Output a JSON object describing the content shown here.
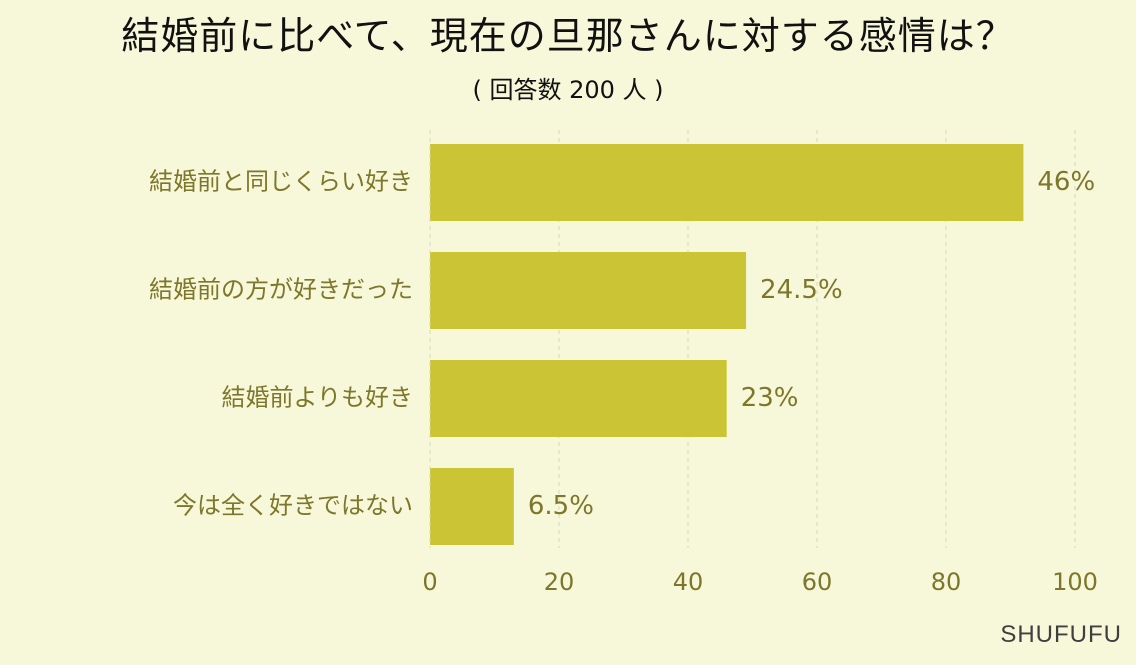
{
  "chart_data": {
    "type": "bar",
    "orientation": "horizontal",
    "title": "結婚前に比べて、現在の旦那さんに対する感情は？",
    "subtitle": "( 回答数 200 人 )",
    "categories": [
      "結婚前と同じくらい好き",
      "結婚前の方が好きだった",
      "結婚前よりも好き",
      "今は全く好きではない"
    ],
    "values": [
      92,
      49,
      46,
      13
    ],
    "value_labels": [
      "46%",
      "24.5%",
      "23%",
      "6.5%"
    ],
    "xlim": [
      0,
      100
    ],
    "xticks": [
      "0",
      "20",
      "40",
      "60",
      "80",
      "100"
    ],
    "grid": true,
    "colors": {
      "bar": "#cbc535",
      "text": "#7c772a",
      "grid": "#d7d7b9",
      "background": "#f7f7d9"
    }
  },
  "watermark": "SHUFUFU"
}
